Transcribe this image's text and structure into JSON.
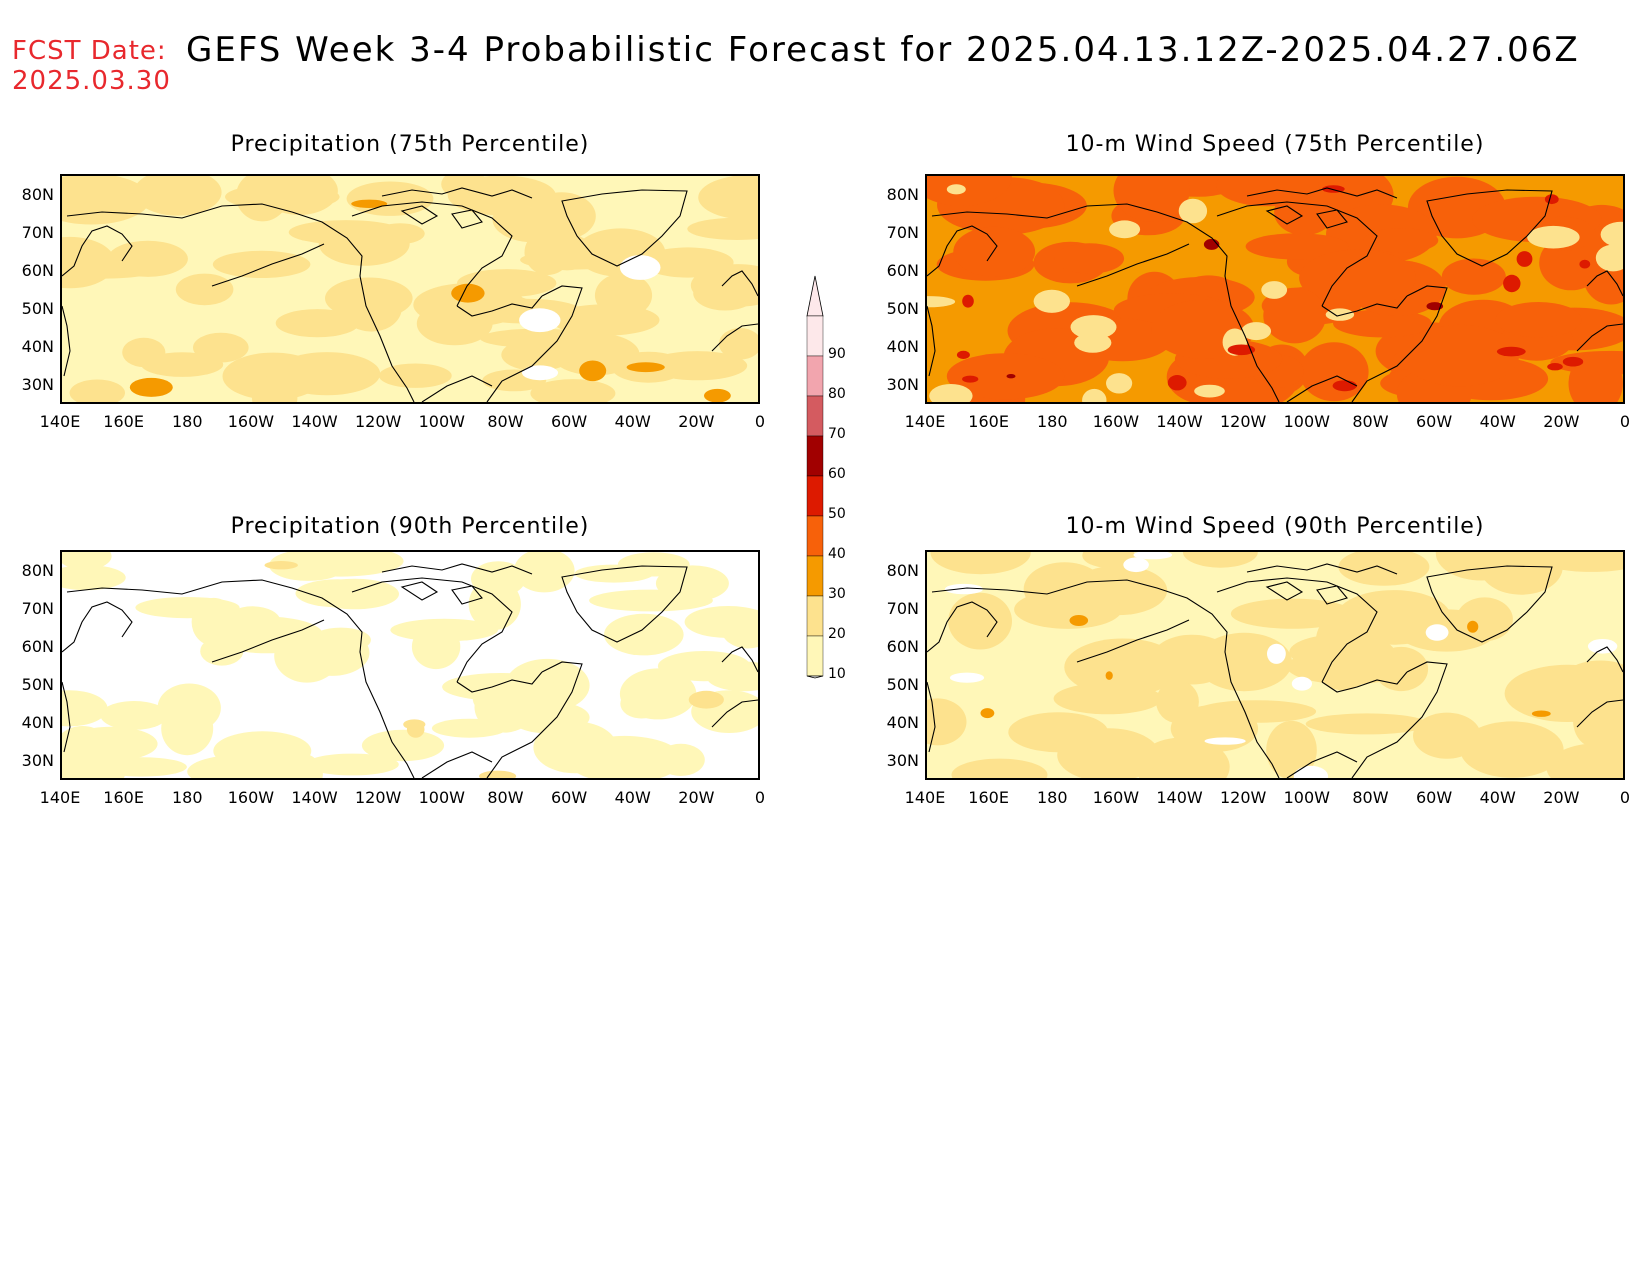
{
  "header": {
    "fcst_label": "FCST Date:",
    "fcst_date": "2025.03.30",
    "title": "GEFS Week 3-4 Probabilistic Forecast for 2025.04.13.12Z-2025.04.27.06Z"
  },
  "panels": [
    {
      "title": "Precipitation (75th Percentile)"
    },
    {
      "title": "10-m Wind Speed (75th Percentile)"
    },
    {
      "title": "Precipitation (90th Percentile)"
    },
    {
      "title": "10-m Wind Speed (90th Percentile)"
    }
  ],
  "lat_labels": [
    "80N",
    "70N",
    "60N",
    "50N",
    "40N",
    "30N"
  ],
  "lon_labels": [
    "140E",
    "160E",
    "180",
    "160W",
    "140W",
    "120W",
    "100W",
    "80W",
    "60W",
    "40W",
    "20W",
    "0"
  ],
  "colorbar": {
    "labels": [
      "90",
      "80",
      "70",
      "60",
      "50",
      "40",
      "30",
      "20",
      "10"
    ],
    "colors": [
      "#fde8ea",
      "#f2a5ae",
      "#d45b60",
      "#a10000",
      "#dd1a00",
      "#f7610a",
      "#f59a00",
      "#fde28e",
      "#fff7b8"
    ]
  },
  "map_colors": {
    "white": "#ffffff",
    "lightest": "#fff7b8",
    "light": "#fde28e",
    "orange": "#f59a00",
    "dark_orange": "#f7610a",
    "red": "#dd1a00",
    "dark_red": "#a10000"
  }
}
